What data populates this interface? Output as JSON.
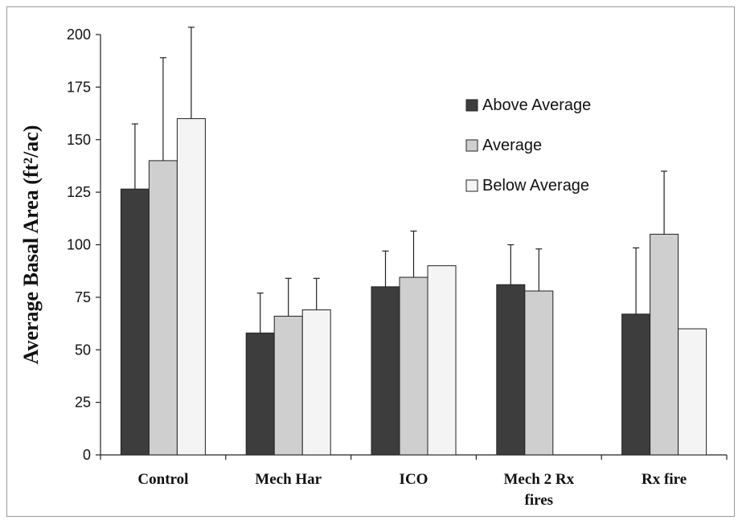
{
  "chart_data": {
    "type": "bar",
    "title": "",
    "xlabel": "",
    "ylabel": "Average Basal Area (ft²/ac)",
    "ylim": [
      0,
      200
    ],
    "yticks": [
      0,
      25,
      50,
      75,
      100,
      125,
      150,
      175,
      200
    ],
    "categories": [
      "Control",
      "Mech Har",
      "ICO",
      "Mech 2 Rx fires",
      "Rx fire"
    ],
    "series": [
      {
        "name": "Above Average",
        "color": "#3d3d3d",
        "values": [
          126.5,
          58,
          80,
          81,
          67
        ],
        "error": [
          31,
          19,
          17,
          19,
          31.5
        ]
      },
      {
        "name": "Average",
        "color": "#cfcfcf",
        "values": [
          140,
          66,
          84.5,
          78,
          105
        ],
        "error": [
          49,
          18,
          22,
          20,
          30
        ]
      },
      {
        "name": "Below Average",
        "color": "#f4f4f4",
        "values": [
          160,
          69,
          90,
          null,
          60
        ],
        "error": [
          43.5,
          15,
          null,
          null,
          null
        ]
      }
    ],
    "legend_position": "top-right",
    "grid": false
  }
}
